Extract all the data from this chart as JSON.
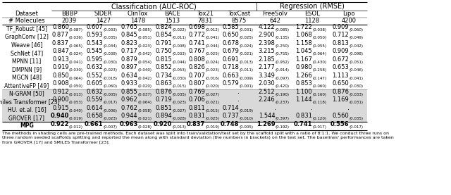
{
  "title_classification": "Classification (AUC-ROC)",
  "title_regression": "Regression (RMSE)",
  "col_headers": [
    "Dataset",
    "BBBP",
    "SIDER",
    "ClinTox",
    "BACE",
    "Tox21",
    "ToxCast",
    "FreeSolv",
    "ESOL",
    "Lipo"
  ],
  "col_molecules": [
    "# Molecules",
    "2039",
    "1427",
    "1478",
    "1513",
    "7831",
    "8575",
    "642",
    "1128",
    "4200"
  ],
  "rows": [
    {
      "name": "TF_Robust",
      "ref": "45",
      "shaded": false,
      "bold": [],
      "vals": [
        [
          "0.860",
          "0.087"
        ],
        [
          "0.607",
          "0.033"
        ],
        [
          "0.765",
          "0.085"
        ],
        [
          "0.824",
          "0.022"
        ],
        [
          "0.698",
          "0.012"
        ],
        [
          "0.585",
          "0.031"
        ],
        [
          "4.122",
          "0.085"
        ],
        [
          "1.722",
          "0.038"
        ],
        [
          "0.909",
          "0.060"
        ]
      ]
    },
    {
      "name": "GraphConv",
      "ref": "12",
      "shaded": false,
      "bold": [],
      "vals": [
        [
          "0.877",
          "0.036"
        ],
        [
          "0.593",
          "0.035"
        ],
        [
          "0.845",
          "0.051"
        ],
        [
          "0.854",
          "0.011"
        ],
        [
          "0.772",
          "0.041"
        ],
        [
          "0.650",
          "0.025"
        ],
        [
          "2.900",
          "0.135"
        ],
        [
          "1.068",
          "0.050"
        ],
        [
          "0.712",
          "0.049"
        ]
      ]
    },
    {
      "name": "Weave",
      "ref": "46",
      "shaded": false,
      "bold": [],
      "vals": [
        [
          "0.837",
          "0.065"
        ],
        [
          "0.543",
          "0.034"
        ],
        [
          "0.823",
          "0.023"
        ],
        [
          "0.791",
          "0.008"
        ],
        [
          "0.741",
          "0.044"
        ],
        [
          "0.678",
          "0.024"
        ],
        [
          "2.398",
          "0.250"
        ],
        [
          "1.158",
          "0.055"
        ],
        [
          "0.813",
          "0.042"
        ]
      ]
    },
    {
      "name": "SchNet",
      "ref": "47",
      "shaded": false,
      "bold": [],
      "vals": [
        [
          "0.847",
          "0.024"
        ],
        [
          "0.545",
          "0.038"
        ],
        [
          "0.717",
          "0.042"
        ],
        [
          "0.750",
          "0.033"
        ],
        [
          "0.767",
          "0.025"
        ],
        [
          "0.679",
          "0.021"
        ],
        [
          "3.215",
          "0.755"
        ],
        [
          "1.045",
          "0.064"
        ],
        [
          "0.909",
          "0.098"
        ]
      ]
    },
    {
      "name": "MPNN",
      "ref": "11",
      "shaded": false,
      "bold": [],
      "vals": [
        [
          "0.913",
          "0.041"
        ],
        [
          "0.595",
          "0.030"
        ],
        [
          "0.879",
          "0.054"
        ],
        [
          "0.815",
          "0.044"
        ],
        [
          "0.808",
          "0.024"
        ],
        [
          "0.691",
          "0.013"
        ],
        [
          "2.185",
          "0.952"
        ],
        [
          "1.167",
          "0.430"
        ],
        [
          "0.672",
          "0.051"
        ]
      ]
    },
    {
      "name": "DMPNN",
      "ref": "9",
      "shaded": false,
      "bold": [],
      "vals": [
        [
          "0.919",
          "0.030"
        ],
        [
          "0.632",
          "0.023"
        ],
        [
          "0.897",
          "0.040"
        ],
        [
          "0.852",
          "0.053"
        ],
        [
          "0.826",
          "0.023"
        ],
        [
          "0.718",
          "0.011"
        ],
        [
          "2.177",
          "0.914"
        ],
        [
          "0.980",
          "0.258"
        ],
        [
          "0.653",
          "0.046"
        ]
      ]
    },
    {
      "name": "MGCN",
      "ref": "48",
      "shaded": false,
      "bold": [],
      "vals": [
        [
          "0.850",
          "0.064"
        ],
        [
          "0.552",
          "0.018"
        ],
        [
          "0.634",
          "0.042"
        ],
        [
          "0.734",
          "0.030"
        ],
        [
          "0.707",
          "0.016"
        ],
        [
          "0.663",
          "0.009"
        ],
        [
          "3.349",
          "0.097"
        ],
        [
          "1.266",
          "0.147"
        ],
        [
          "1.113",
          "0.041"
        ]
      ]
    },
    {
      "name": "AttentiveFP",
      "ref": "49",
      "shaded": false,
      "bold": [],
      "vals": [
        [
          "0.908",
          "0.050"
        ],
        [
          "0.605",
          "0.060"
        ],
        [
          "0.933",
          "0.020"
        ],
        [
          "0.863",
          "0.015"
        ],
        [
          "0.807",
          "0.020"
        ],
        [
          "0.579",
          "0.001"
        ],
        [
          "2.030",
          "0.420"
        ],
        [
          "0.853",
          "0.060"
        ],
        [
          "0.650",
          "0.030"
        ]
      ]
    },
    {
      "name": "N-GRAM",
      "ref": "50",
      "shaded": true,
      "bold": [],
      "vals": [
        [
          "0.912",
          "0.013"
        ],
        [
          "0.632",
          "0.005"
        ],
        [
          "0.855",
          "0.037"
        ],
        [
          "0.876",
          "0.035"
        ],
        [
          "0.769",
          "0.027"
        ],
        [
          "-",
          ""
        ],
        [
          "2.512",
          "0.190"
        ],
        [
          "1.100",
          "0.160"
        ],
        [
          "0.876",
          "0.033"
        ]
      ]
    },
    {
      "name": "Smiles Transformer",
      "ref": "23",
      "shaded": true,
      "bold": [],
      "vals": [
        [
          "0.900",
          "0.053"
        ],
        [
          "0.559",
          "0.017"
        ],
        [
          "0.962",
          "0.064"
        ],
        [
          "0.719",
          "0.023"
        ],
        [
          "0.706",
          "0.021"
        ],
        [
          "-",
          ""
        ],
        [
          "2.246",
          "0.237"
        ],
        [
          "1.144",
          "0.118"
        ],
        [
          "1.169",
          "0.031"
        ]
      ]
    },
    {
      "name": "HU. et.al.",
      "ref": "16",
      "shaded": true,
      "bold": [],
      "vals": [
        [
          "0.915",
          "0.040"
        ],
        [
          "0.614",
          "0.006"
        ],
        [
          "0.762",
          "0.058"
        ],
        [
          "0.851",
          "0.027"
        ],
        [
          "0.811",
          "0.015"
        ],
        [
          "0.714",
          "0.019"
        ],
        [
          "-",
          ""
        ],
        [
          "-",
          ""
        ],
        [
          "-",
          ""
        ]
      ]
    },
    {
      "name": "GROVER",
      "ref": "17",
      "shaded": true,
      "bold": [
        0
      ],
      "vals": [
        [
          "0.940",
          "0.019"
        ],
        [
          "0.658",
          "0.023"
        ],
        [
          "0.944",
          "0.021"
        ],
        [
          "0.894",
          "0.028"
        ],
        [
          "0.831",
          "0.025"
        ],
        [
          "0.737",
          "0.010"
        ],
        [
          "1.544",
          "0.397"
        ],
        [
          "0.831",
          "0.120"
        ],
        [
          "0.560",
          "0.035"
        ]
      ]
    },
    {
      "name": "MPG",
      "ref": "",
      "shaded": false,
      "bold": [
        0,
        1,
        2,
        3,
        4,
        5,
        6,
        7,
        8
      ],
      "vals": [
        [
          "0.922",
          "0.012"
        ],
        [
          "0.661",
          "0.007"
        ],
        [
          "0.963",
          "0.028"
        ],
        [
          "0.920",
          "0.013"
        ],
        [
          "0.837",
          "0.019"
        ],
        [
          "0.748",
          "0.005"
        ],
        [
          "1.269",
          "0.192"
        ],
        [
          "0.741",
          "0.017"
        ],
        [
          "0.556",
          "0.017"
        ]
      ]
    }
  ],
  "footnote": "The methods in shading cells are pre-trained methods. Each dataset was split into train/validation/test set by the scaffold split with a ratio of 8:1:1. We conduct three runs on\nthree random seeded scaffolds splitting and reported the mean along with standard deviation (the numbers in brackets) on the test set. The baselines' performances are taken\nfrom GROVER [17] and SMILES Transformer [23].",
  "shaded_bg": "#d9d9d9",
  "ref_color": "#3333bb",
  "n_class_cols": 6,
  "n_reg_cols": 3
}
